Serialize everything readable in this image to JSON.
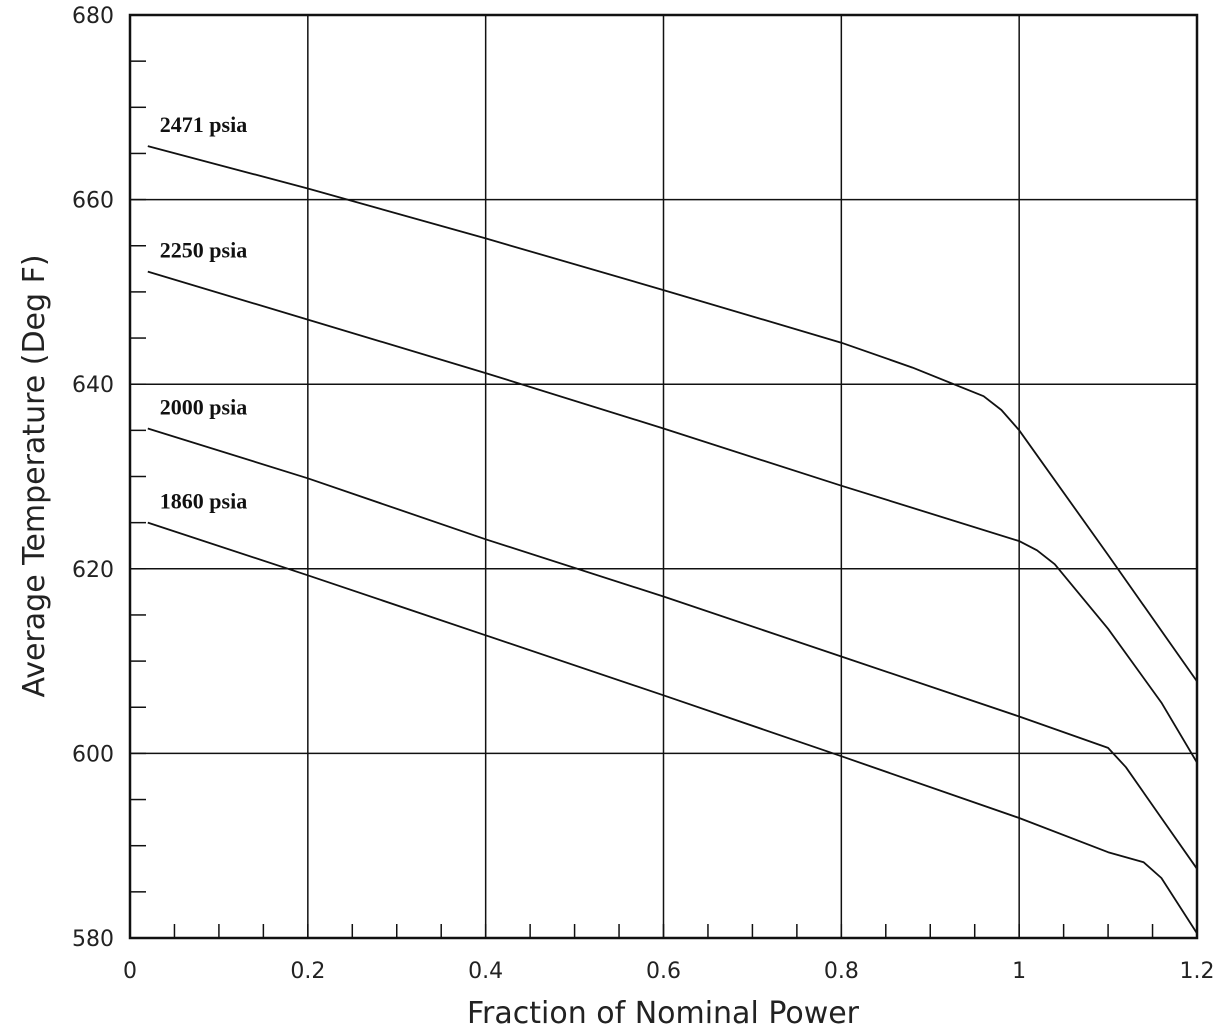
{
  "chart_data": {
    "type": "line",
    "title": "",
    "xlabel": "Fraction of Nominal Power",
    "ylabel": "Average Temperature (Deg F)",
    "xlim": [
      0,
      1.2
    ],
    "ylim": [
      580,
      680
    ],
    "x_ticks": [
      "0",
      "0.2",
      "0.4",
      "0.6",
      "0.8",
      "1",
      "1.2"
    ],
    "y_ticks": [
      "580",
      "600",
      "620",
      "640",
      "660",
      "680"
    ],
    "grid": true,
    "legend": "none",
    "series": [
      {
        "name": "2471 psia",
        "x": [
          0.02,
          0.2,
          0.4,
          0.6,
          0.8,
          0.88,
          0.96,
          0.98,
          1.0,
          1.1,
          1.2
        ],
        "y": [
          665.8,
          661.2,
          655.8,
          650.2,
          644.5,
          641.8,
          638.7,
          637.2,
          635.0,
          621.5,
          607.8
        ]
      },
      {
        "name": "2250 psia",
        "x": [
          0.02,
          0.2,
          0.4,
          0.6,
          0.8,
          1.0,
          1.02,
          1.04,
          1.1,
          1.16,
          1.2
        ],
        "y": [
          652.2,
          647.0,
          641.2,
          635.2,
          629.0,
          623.0,
          622.0,
          620.5,
          613.5,
          605.5,
          599.0
        ]
      },
      {
        "name": "2000 psia",
        "x": [
          0.02,
          0.2,
          0.4,
          0.6,
          0.8,
          1.0,
          1.1,
          1.12,
          1.16,
          1.2
        ],
        "y": [
          635.2,
          629.8,
          623.2,
          617.0,
          610.5,
          604.0,
          600.6,
          598.5,
          593.0,
          587.5
        ]
      },
      {
        "name": "1860 psia",
        "x": [
          0.02,
          0.2,
          0.4,
          0.6,
          0.8,
          1.0,
          1.1,
          1.14,
          1.16,
          1.2
        ],
        "y": [
          625.0,
          619.3,
          612.8,
          606.3,
          599.7,
          593.0,
          589.3,
          588.2,
          586.5,
          580.5
        ]
      }
    ]
  }
}
